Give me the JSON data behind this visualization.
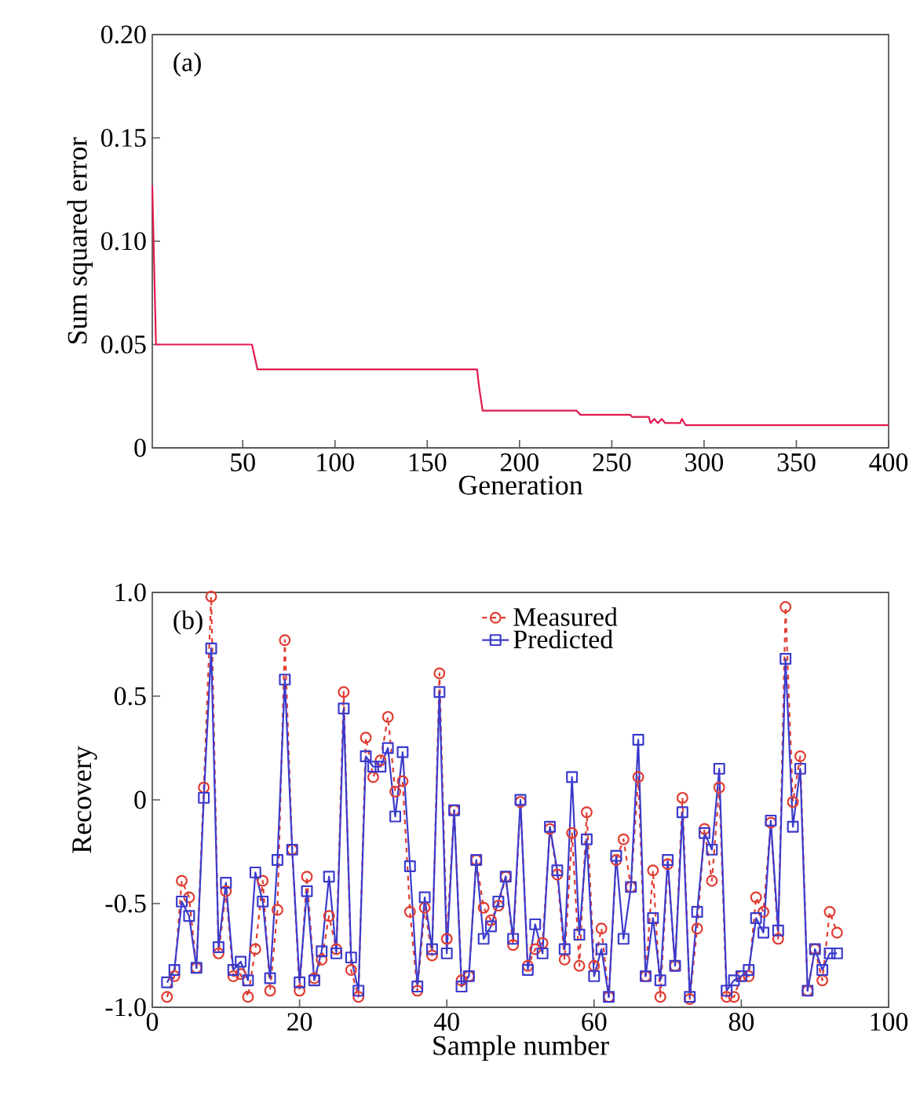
{
  "chart_data": [
    {
      "type": "line",
      "xlabel": "Generation",
      "ylabel": "Sum squared error",
      "annotations": [
        "(a)"
      ],
      "color": "#e3194f",
      "x": [
        1,
        3,
        55,
        58,
        177,
        178,
        180,
        231,
        233,
        260,
        261,
        270,
        271,
        273,
        275,
        277,
        279,
        287,
        288,
        290,
        400
      ],
      "values": [
        0.127,
        0.05,
        0.05,
        0.038,
        0.038,
        0.03,
        0.018,
        0.018,
        0.016,
        0.016,
        0.015,
        0.015,
        0.012,
        0.014,
        0.012,
        0.014,
        0.012,
        0.012,
        0.014,
        0.011,
        0.011
      ],
      "xlim": [
        1,
        400
      ],
      "xticks": [
        50,
        100,
        150,
        200,
        250,
        300,
        350,
        400
      ],
      "ylim": [
        0,
        0.2
      ],
      "yticks": [
        0,
        0.05,
        {
          "value": 0.1,
          "label": "0.10"
        },
        0.15,
        {
          "value": 0.2,
          "label": "0.20"
        }
      ]
    },
    {
      "type": "line",
      "xlabel": "Sample number",
      "ylabel": "Recovery",
      "annotations": [
        "(b)"
      ],
      "legend": "top",
      "x": [
        2,
        3,
        4,
        5,
        6,
        7,
        8,
        9,
        10,
        11,
        12,
        13,
        14,
        15,
        16,
        17,
        18,
        19,
        20,
        21,
        22,
        23,
        24,
        25,
        26,
        27,
        28,
        29,
        30,
        31,
        32,
        33,
        34,
        35,
        36,
        37,
        38,
        39,
        40,
        41,
        42,
        43,
        44,
        45,
        46,
        47,
        48,
        49,
        50,
        51,
        52,
        53,
        54,
        55,
        56,
        57,
        58,
        59,
        60,
        61,
        62,
        63,
        64,
        65,
        66,
        67,
        68,
        69,
        70,
        71,
        72,
        73,
        74,
        75,
        76,
        77,
        78,
        79,
        80,
        81,
        82,
        83,
        84,
        85,
        86,
        87,
        88,
        89,
        90,
        91,
        92,
        93
      ],
      "series": [
        {
          "name": "Measured",
          "color": "#e03c31",
          "marker": "circle",
          "line_style": "dashed",
          "values": [
            -0.95,
            -0.85,
            -0.39,
            -0.47,
            -0.81,
            0.06,
            0.98,
            -0.74,
            -0.44,
            -0.85,
            -0.84,
            -0.95,
            -0.72,
            -0.39,
            -0.92,
            -0.53,
            0.77,
            -0.24,
            -0.92,
            -0.37,
            -0.86,
            -0.77,
            -0.56,
            -0.72,
            0.52,
            -0.82,
            -0.95,
            0.3,
            0.11,
            0.19,
            0.4,
            0.04,
            0.09,
            -0.54,
            -0.92,
            -0.52,
            -0.75,
            0.61,
            -0.67,
            -0.05,
            -0.87,
            -0.85,
            -0.29,
            -0.52,
            -0.58,
            -0.51,
            -0.37,
            -0.7,
            -0.01,
            -0.8,
            -0.72,
            -0.69,
            -0.14,
            -0.36,
            -0.77,
            -0.16,
            -0.8,
            -0.06,
            -0.8,
            -0.62,
            -0.95,
            -0.29,
            -0.19,
            -0.42,
            0.11,
            -0.85,
            -0.34,
            -0.95,
            -0.31,
            -0.8,
            0.01,
            -0.96,
            -0.62,
            -0.14,
            -0.39,
            0.06,
            -0.95,
            -0.95,
            -0.85,
            -0.85,
            -0.47,
            -0.54,
            -0.11,
            -0.67,
            0.93,
            -0.01,
            0.21,
            -0.92,
            -0.72,
            -0.87,
            -0.54,
            -0.64
          ]
        },
        {
          "name": "Predicted",
          "color": "#3b3bcc",
          "marker": "square",
          "line_style": "solid",
          "values": [
            -0.88,
            -0.82,
            -0.49,
            -0.56,
            -0.81,
            0.01,
            0.73,
            -0.71,
            -0.4,
            -0.82,
            -0.78,
            -0.87,
            -0.35,
            -0.49,
            -0.86,
            -0.29,
            0.58,
            -0.24,
            -0.88,
            -0.44,
            -0.87,
            -0.73,
            -0.37,
            -0.74,
            0.44,
            -0.76,
            -0.92,
            0.21,
            0.16,
            0.16,
            0.25,
            -0.08,
            0.23,
            -0.32,
            -0.9,
            -0.47,
            -0.72,
            0.52,
            -0.74,
            -0.05,
            -0.9,
            -0.85,
            -0.29,
            -0.67,
            -0.61,
            -0.49,
            -0.37,
            -0.67,
            0.0,
            -0.82,
            -0.6,
            -0.74,
            -0.13,
            -0.34,
            -0.72,
            0.11,
            -0.65,
            -0.19,
            -0.85,
            -0.72,
            -0.95,
            -0.27,
            -0.67,
            -0.42,
            0.29,
            -0.85,
            -0.57,
            -0.87,
            -0.29,
            -0.8,
            -0.06,
            -0.95,
            -0.54,
            -0.16,
            -0.24,
            0.15,
            -0.92,
            -0.87,
            -0.85,
            -0.82,
            -0.57,
            -0.64,
            -0.1,
            -0.63,
            0.68,
            -0.13,
            0.15,
            -0.92,
            -0.72,
            -0.82,
            -0.74,
            -0.74
          ]
        }
      ],
      "xlim": [
        0,
        100
      ],
      "xticks": [
        0,
        20,
        40,
        60,
        80,
        100
      ],
      "ylim": [
        -1,
        1
      ],
      "yticks": [
        {
          "value": -1,
          "label": "-1.0"
        },
        -0.5,
        0,
        0.5,
        {
          "value": 1,
          "label": "1.0"
        }
      ]
    }
  ]
}
